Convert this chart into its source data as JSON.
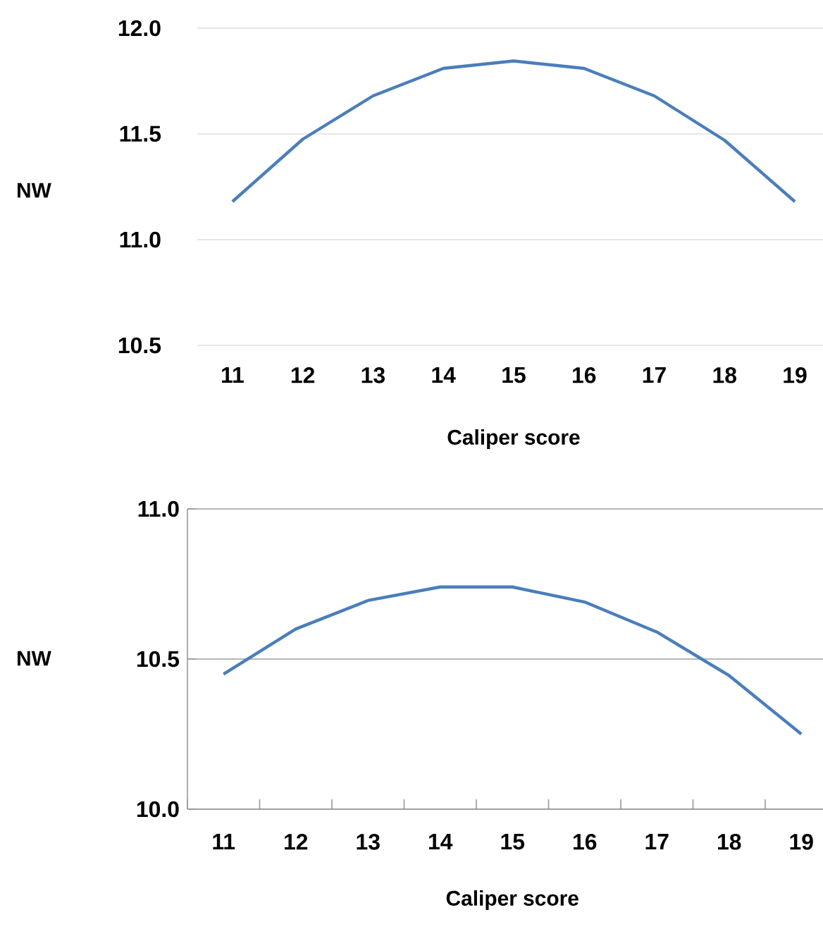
{
  "chart_data": [
    {
      "type": "line",
      "xlabel": "Caliper score",
      "ylabel": "NW",
      "categories": [
        "11",
        "12",
        "13",
        "14",
        "15",
        "16",
        "17",
        "18",
        "19"
      ],
      "series": [
        {
          "color": "#4a7ebb",
          "values": [
            11.18,
            11.475,
            11.68,
            11.81,
            11.845,
            11.81,
            11.68,
            11.47,
            11.18
          ]
        }
      ],
      "ylim": [
        10.5,
        12.0
      ],
      "yticks": [
        {
          "value": 10.5,
          "label": "10.5"
        },
        {
          "value": 11,
          "label": "11.0"
        },
        {
          "value": 11.5,
          "label": "11.5"
        },
        {
          "value": 12,
          "label": "12.0"
        }
      ],
      "grid": "y",
      "marker": "none",
      "line_style": "solid"
    },
    {
      "type": "line",
      "xlabel": "Caliper score",
      "ylabel": "NW",
      "categories": [
        "11",
        "12",
        "13",
        "14",
        "15",
        "16",
        "17",
        "18",
        "19"
      ],
      "series": [
        {
          "color": "#4a7ebb",
          "values": [
            10.45,
            10.6,
            10.695,
            10.74,
            10.74,
            10.69,
            10.59,
            10.445,
            10.25
          ]
        }
      ],
      "ylim": [
        10.0,
        11.0
      ],
      "yticks": [
        {
          "value": 10,
          "label": "10.0"
        },
        {
          "value": 10.5,
          "label": "10.5"
        },
        {
          "value": 11,
          "label": "11.0"
        }
      ],
      "grid": "y",
      "marker": "none",
      "line_style": "solid"
    }
  ]
}
